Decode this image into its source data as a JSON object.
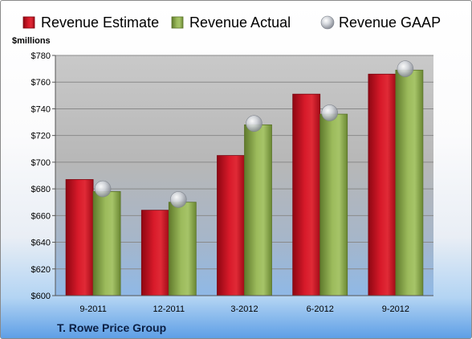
{
  "chart_data": {
    "type": "bar",
    "ylabel": "$millions",
    "ylim": [
      600,
      780
    ],
    "yticks": [
      "$600",
      "$620",
      "$640",
      "$660",
      "$680",
      "$700",
      "$720",
      "$740",
      "$760",
      "$780"
    ],
    "categories": [
      "9-2011",
      "12-2011",
      "3-2012",
      "6-2012",
      "9-2012"
    ],
    "series": [
      {
        "name": "Revenue Estimate",
        "kind": "bar",
        "color": "#c8101f",
        "values": [
          687,
          664,
          705,
          751,
          766
        ]
      },
      {
        "name": "Revenue Actual",
        "kind": "bar",
        "color": "#8cab4f",
        "values": [
          678,
          670,
          728,
          736,
          769
        ]
      },
      {
        "name": "Revenue GAAP",
        "kind": "point",
        "color": "#b9bec6",
        "values": [
          680,
          672,
          729,
          737,
          770
        ]
      }
    ],
    "company": "T. Rowe Price Group",
    "legend_position": "top",
    "grid": true
  }
}
